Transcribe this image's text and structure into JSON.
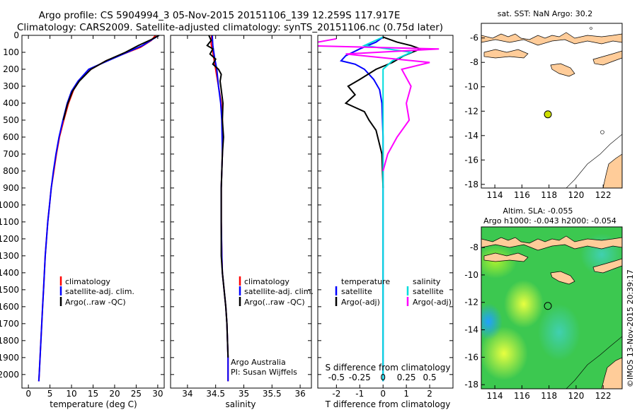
{
  "header": {
    "line1": "Argo profile: CS 5904994_3 05-Nov-2015 20151106_139 12.259S 117.917E",
    "line2": "Climatology: CARS2009. Satellite-adjusted climatology: synTS_20151106.nc (0.75d later)"
  },
  "watermark": "©IMOS 13-Nov-2015 20:39:17",
  "chart_data": [
    {
      "id": "temperature",
      "type": "line",
      "xlabel": "temperature (deg C)",
      "ylabel": "",
      "xlim": [
        -1.5,
        31.5
      ],
      "ylim": [
        2080,
        0
      ],
      "xticks": [
        0,
        5,
        10,
        15,
        20,
        25,
        30
      ],
      "yticks": [
        0,
        100,
        200,
        300,
        400,
        500,
        600,
        700,
        800,
        900,
        1000,
        1100,
        1200,
        1300,
        1400,
        1500,
        1600,
        1700,
        1800,
        1900,
        2000
      ],
      "legend": {
        "placement": "bottom-right",
        "entries": [
          "climatology",
          "satellite-adj. clim.",
          "Argo(..raw -QC)"
        ]
      },
      "series": [
        {
          "name": "climatology",
          "color": "#ff0000",
          "points": [
            [
              29.5,
              0
            ],
            [
              28.5,
              30
            ],
            [
              26,
              70
            ],
            [
              22,
              110
            ],
            [
              18,
              150
            ],
            [
              14.5,
              200
            ],
            [
              12,
              260
            ],
            [
              10.5,
              320
            ],
            [
              9.3,
              400
            ],
            [
              8.2,
              500
            ],
            [
              7.2,
              600
            ],
            [
              6.5,
              700
            ],
            [
              5.9,
              800
            ],
            [
              5.3,
              900
            ],
            [
              4.9,
              1000
            ],
            [
              4.5,
              1100
            ],
            [
              4.2,
              1200
            ],
            [
              3.9,
              1300
            ],
            [
              3.7,
              1400
            ],
            [
              3.5,
              1500
            ],
            [
              3.3,
              1600
            ],
            [
              3.1,
              1700
            ],
            [
              2.9,
              1800
            ],
            [
              2.7,
              1900
            ],
            [
              2.5,
              2000
            ],
            [
              2.4,
              2040
            ]
          ]
        },
        {
          "name": "satellite-adj. clim.",
          "color": "#0000ff",
          "points": [
            [
              30.3,
              0
            ],
            [
              29,
              20
            ],
            [
              26.5,
              60
            ],
            [
              22,
              110
            ],
            [
              17.5,
              160
            ],
            [
              14,
              200
            ],
            [
              11.5,
              270
            ],
            [
              10,
              330
            ],
            [
              9,
              400
            ],
            [
              8,
              500
            ],
            [
              7.1,
              600
            ],
            [
              6.4,
              700
            ],
            [
              5.8,
              800
            ],
            [
              5.3,
              900
            ],
            [
              4.9,
              1000
            ],
            [
              4.5,
              1100
            ],
            [
              4.2,
              1200
            ],
            [
              3.9,
              1300
            ],
            [
              3.7,
              1400
            ],
            [
              3.5,
              1500
            ],
            [
              3.3,
              1600
            ],
            [
              3.1,
              1700
            ],
            [
              2.9,
              1800
            ],
            [
              2.7,
              1900
            ],
            [
              2.5,
              2000
            ],
            [
              2.4,
              2040
            ]
          ]
        },
        {
          "name": "Argo(..raw -QC)",
          "color": "#000000",
          "points": [
            [
              30.3,
              0
            ],
            [
              28.5,
              25
            ],
            [
              25.5,
              60
            ],
            [
              22.5,
              100
            ],
            [
              18,
              150
            ],
            [
              14.5,
              200
            ],
            [
              11.8,
              270
            ],
            [
              10.2,
              330
            ],
            [
              9,
              410
            ],
            [
              8.1,
              500
            ]
          ]
        }
      ]
    },
    {
      "id": "salinity",
      "type": "line",
      "xlabel": "salinity",
      "ylabel": "",
      "xlim": [
        33.7,
        36.2
      ],
      "ylim": [
        2080,
        0
      ],
      "xticks": [
        34,
        34.5,
        35,
        35.5,
        36
      ],
      "legend": {
        "placement": "bottom-right",
        "entries": [
          "climatology",
          "satellite-adj. clim.",
          "Argo(..raw -QC)"
        ]
      },
      "annotation": [
        "Argo Australia",
        "PI: Susan Wijffels"
      ],
      "series": [
        {
          "name": "climatology",
          "color": "#ff0000",
          "points": [
            [
              34.43,
              0
            ],
            [
              34.42,
              50
            ],
            [
              34.45,
              100
            ],
            [
              34.5,
              200
            ],
            [
              34.55,
              300
            ],
            [
              34.6,
              400
            ],
            [
              34.62,
              500
            ],
            [
              34.62,
              700
            ],
            [
              34.6,
              900
            ],
            [
              34.6,
              1100
            ],
            [
              34.61,
              1300
            ],
            [
              34.62,
              1400
            ],
            [
              34.65,
              1500
            ],
            [
              34.68,
              1600
            ],
            [
              34.7,
              1700
            ],
            [
              34.71,
              1800
            ],
            [
              34.72,
              1900
            ],
            [
              34.72,
              2040
            ]
          ]
        },
        {
          "name": "satellite-adj. clim.",
          "color": "#0000ff",
          "points": [
            [
              34.44,
              0
            ],
            [
              34.45,
              60
            ],
            [
              34.48,
              130
            ],
            [
              34.52,
              200
            ],
            [
              34.55,
              300
            ],
            [
              34.59,
              400
            ],
            [
              34.61,
              500
            ],
            [
              34.62,
              700
            ],
            [
              34.6,
              900
            ],
            [
              34.6,
              1100
            ],
            [
              34.61,
              1300
            ],
            [
              34.62,
              1400
            ],
            [
              34.65,
              1500
            ],
            [
              34.68,
              1600
            ],
            [
              34.7,
              1700
            ],
            [
              34.71,
              1800
            ],
            [
              34.72,
              1900
            ],
            [
              34.72,
              2040
            ]
          ]
        },
        {
          "name": "Argo(..raw -QC)",
          "color": "#000000",
          "points": [
            [
              34.38,
              0
            ],
            [
              34.42,
              30
            ],
            [
              34.35,
              60
            ],
            [
              34.45,
              80
            ],
            [
              34.4,
              110
            ],
            [
              34.5,
              140
            ],
            [
              34.45,
              170
            ],
            [
              34.55,
              200
            ],
            [
              34.6,
              230
            ],
            [
              34.58,
              270
            ],
            [
              34.6,
              320
            ],
            [
              34.63,
              400
            ],
            [
              34.62,
              500
            ],
            [
              34.64,
              600
            ],
            [
              34.62,
              700
            ],
            [
              34.6,
              900
            ],
            [
              34.6,
              1100
            ],
            [
              34.6,
              1300
            ],
            [
              34.62,
              1400
            ],
            [
              34.65,
              1500
            ],
            [
              34.68,
              1600
            ],
            [
              34.7,
              1700
            ],
            [
              34.71,
              1800
            ],
            [
              34.72,
              1900
            ]
          ]
        }
      ]
    },
    {
      "id": "difference",
      "type": "line",
      "xlabel": "T difference from climatology",
      "xlabel_top": "S difference from climatology",
      "xlim": [
        -2.8,
        3.0
      ],
      "ylim": [
        2080,
        0
      ],
      "xticks": [
        -2,
        -1,
        0,
        1,
        2
      ],
      "sticks": [
        "-0.5",
        "-0.25",
        "0",
        "0.25",
        "0.5"
      ],
      "legend": {
        "placement": "bottom",
        "temp_title": "temperature",
        "sal_title": "salinity",
        "entries": [
          "satellite",
          "Argo(-adj)",
          "satellite",
          "Argo(-adj)"
        ]
      },
      "series": [
        {
          "name": "temperature satellite",
          "color": "#0000ff",
          "points": [
            [
              0,
              10
            ],
            [
              -0.3,
              40
            ],
            [
              -1.0,
              80
            ],
            [
              -1.6,
              120
            ],
            [
              -1.8,
              150
            ],
            [
              -1.2,
              170
            ],
            [
              -0.8,
              200
            ],
            [
              -0.4,
              260
            ],
            [
              -0.15,
              320
            ],
            [
              -0.05,
              400
            ],
            [
              0,
              600
            ],
            [
              0,
              2040
            ]
          ]
        },
        {
          "name": "temperature Argo(-adj)",
          "color": "#000000",
          "points": [
            [
              0,
              10
            ],
            [
              0.6,
              40
            ],
            [
              1.2,
              60
            ],
            [
              1.6,
              80
            ],
            [
              0.9,
              120
            ],
            [
              0.4,
              160
            ],
            [
              -0.3,
              200
            ],
            [
              -1.0,
              260
            ],
            [
              -1.5,
              300
            ],
            [
              -1.2,
              350
            ],
            [
              -1.6,
              400
            ],
            [
              -0.8,
              450
            ],
            [
              -0.6,
              500
            ],
            [
              -0.3,
              560
            ],
            [
              -0.05,
              700
            ],
            [
              0,
              900
            ]
          ]
        },
        {
          "name": "salinity satellite",
          "color": "#00dddd",
          "points": [
            [
              0,
              10
            ],
            [
              -0.2,
              60
            ],
            [
              0.3,
              100
            ],
            [
              0.1,
              150
            ],
            [
              0,
              200
            ],
            [
              0,
              2040
            ]
          ]
        },
        {
          "name": "salinity Argo(-adj)",
          "color": "#ff00ff",
          "points": [
            [
              -0.5,
              20
            ],
            [
              -0.9,
              60
            ],
            [
              0.6,
              80
            ],
            [
              -0.4,
              110
            ],
            [
              0.5,
              160
            ],
            [
              0.2,
              200
            ],
            [
              0.3,
              300
            ],
            [
              0.25,
              400
            ],
            [
              0.28,
              500
            ],
            [
              0.15,
              600
            ],
            [
              0.05,
              700
            ],
            [
              0,
              800
            ]
          ]
        }
      ]
    },
    {
      "id": "map-sst",
      "type": "scatter",
      "title": "sat. SST: NaN Argo: 30.2",
      "xlim": [
        113,
        123.4
      ],
      "ylim": [
        -18.3,
        -4.8
      ],
      "xticks": [
        114,
        116,
        118,
        120,
        122
      ],
      "yticks": [
        -6,
        -8,
        -10,
        -12,
        -14,
        -16,
        -18
      ],
      "marker": {
        "lon": 117.917,
        "lat": -12.259,
        "color": "#ccdd00"
      }
    },
    {
      "id": "map-sla",
      "type": "heatmap",
      "title": "Altim. SLA: -0.055",
      "subtitle": "Argo h1000: -0.043 h2000: -0.054",
      "xlim": [
        113,
        123.4
      ],
      "ylim": [
        -18.3,
        -6.5
      ],
      "xticks": [
        114,
        116,
        118,
        120,
        122
      ],
      "yticks": [
        -8,
        -10,
        -12,
        -14,
        -16,
        -18
      ],
      "marker": {
        "lon": 117.917,
        "lat": -12.259
      }
    }
  ]
}
